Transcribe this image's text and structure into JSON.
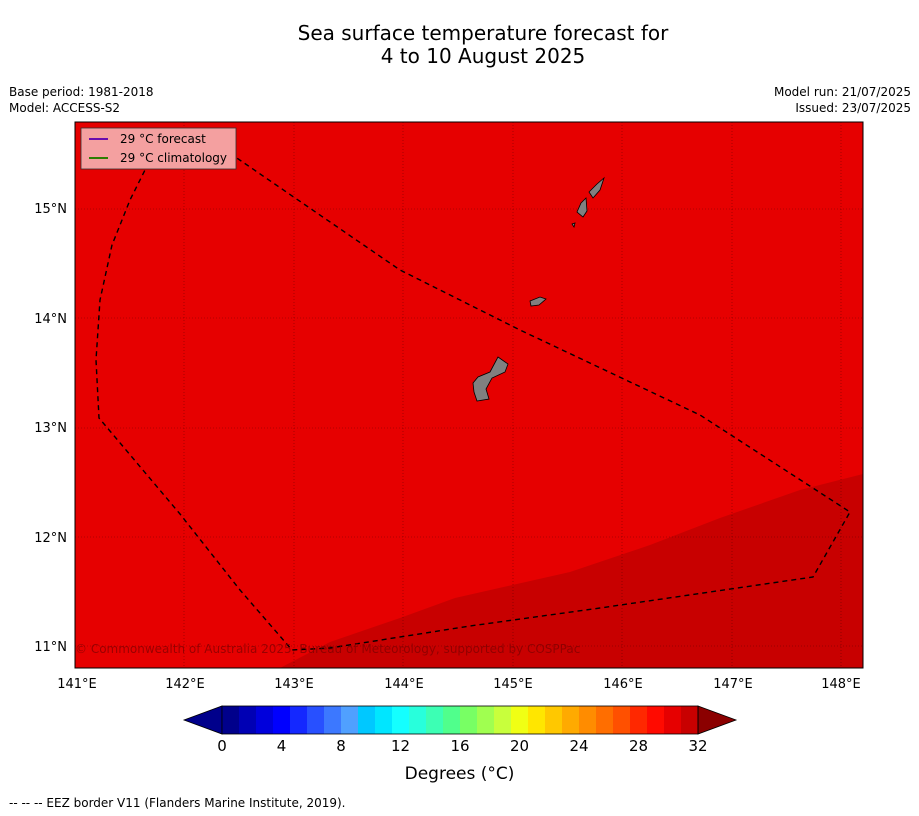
{
  "title": {
    "line1": "Sea surface temperature forecast for",
    "line2": "4 to 10 August 2025"
  },
  "meta_left": {
    "base_period": "Base period: 1981-2018",
    "model": "Model: ACCESS-S2"
  },
  "meta_right": {
    "model_run": "Model run: 21/07/2025",
    "issued": "Issued: 23/07/2025"
  },
  "legend": {
    "forecast": "29 °C  forecast",
    "climatology": "29 °C  climatology",
    "forecast_color": "#6a0dad",
    "climatology_color": "#2e7d00"
  },
  "copyright": "© Commonwealth of Australia 2025, Bureau of Meteorology, supported by COSPPac",
  "map": {
    "lon_ticks": [
      "141°E",
      "142°E",
      "143°E",
      "144°E",
      "145°E",
      "146°E",
      "147°E",
      "148°E"
    ],
    "lat_ticks": [
      "15°N",
      "14°N",
      "13°N",
      "12°N",
      "11°N"
    ],
    "lon_range": [
      141,
      148.2
    ],
    "lat_range": [
      10.8,
      15.8
    ],
    "base_fill_color": "#e60000",
    "warm_fill_color": "#c80000",
    "land_color": "#808080"
  },
  "colorbar": {
    "ticks": [
      "0",
      "4",
      "8",
      "12",
      "16",
      "20",
      "24",
      "28",
      "32"
    ],
    "label": "Degrees (°C)",
    "colors": [
      "#00008b",
      "#0000b4",
      "#0000dc",
      "#0000ff",
      "#1428ff",
      "#2850ff",
      "#3c78ff",
      "#50a0ff",
      "#00c8ff",
      "#00e6ff",
      "#14ffff",
      "#28ffdc",
      "#3cffb4",
      "#50ff8c",
      "#78ff64",
      "#a0ff50",
      "#c8ff3c",
      "#f0ff14",
      "#ffe600",
      "#ffc800",
      "#ffaa00",
      "#ff8c00",
      "#ff6e00",
      "#ff5000",
      "#ff2800",
      "#ff0a00",
      "#e60000",
      "#c80000"
    ]
  },
  "footer": "--  --  -- EEZ border V11 (Flanders Marine Institute, 2019)."
}
